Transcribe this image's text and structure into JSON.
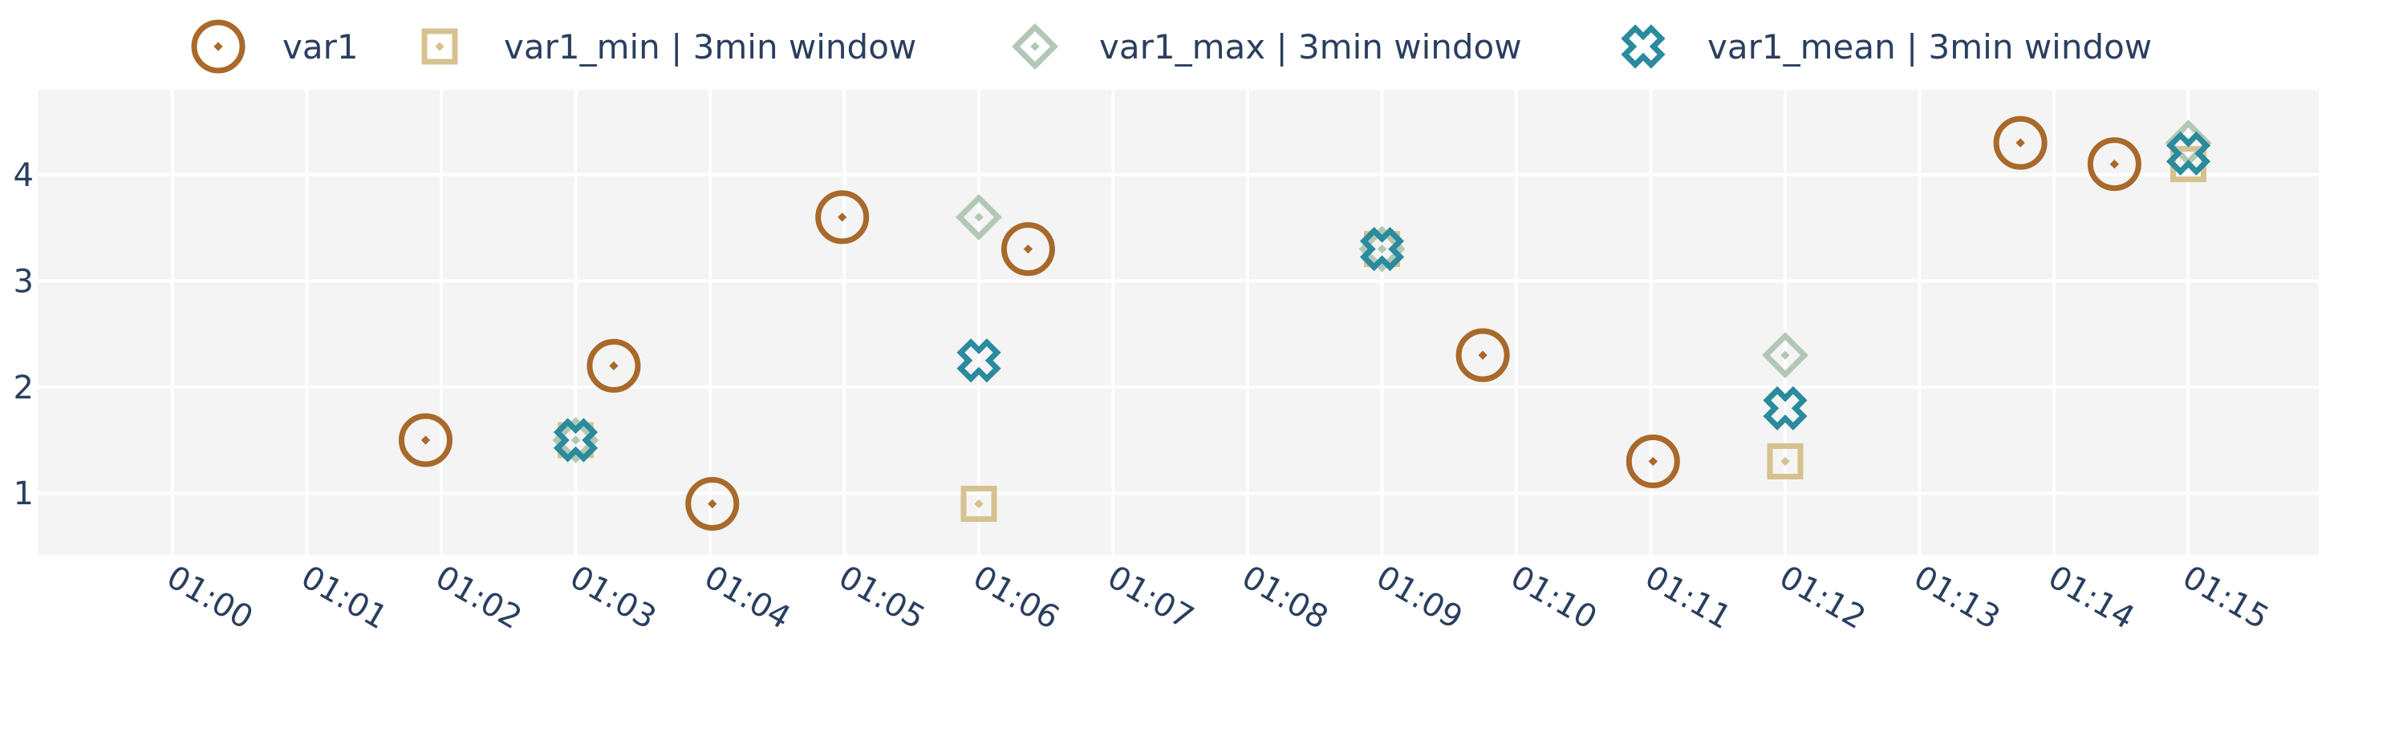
{
  "chart_data": {
    "type": "scatter",
    "title": "",
    "xlabel": "",
    "ylabel": "",
    "x_axis": {
      "type": "time",
      "ticks": [
        "01:00",
        "01:01",
        "01:02",
        "01:03",
        "01:04",
        "01:05",
        "01:06",
        "01:07",
        "01:08",
        "01:09",
        "01:10",
        "01:11",
        "01:12",
        "01:13",
        "01:14",
        "01:15"
      ]
    },
    "y_axis": {
      "ticks": [
        1,
        2,
        3,
        4
      ],
      "range": [
        0.42,
        4.8
      ]
    },
    "grid": true,
    "legend": {
      "position": "top",
      "orientation": "horizontal"
    },
    "colors": {
      "background": "#f4f4f4",
      "grid": "#ffffff",
      "text": "#2a3f5f"
    },
    "series": [
      {
        "name": "var1",
        "marker": "circle-dot",
        "color": "#a8692a",
        "points": [
          {
            "x": "01:01:53",
            "y": 1.5
          },
          {
            "x": "01:03:17",
            "y": 2.2
          },
          {
            "x": "01:04:01",
            "y": 0.9
          },
          {
            "x": "01:04:59",
            "y": 3.6
          },
          {
            "x": "01:06:22",
            "y": 3.3
          },
          {
            "x": "01:09:45",
            "y": 2.3
          },
          {
            "x": "01:11:01",
            "y": 1.3
          },
          {
            "x": "01:13:45",
            "y": 4.3
          },
          {
            "x": "01:14:27",
            "y": 4.1
          }
        ]
      },
      {
        "name": "var1_min | 3min window",
        "marker": "square-dot",
        "color": "#d6c28f",
        "points": [
          {
            "x": "01:03:00",
            "y": 1.5
          },
          {
            "x": "01:06:00",
            "y": 0.9
          },
          {
            "x": "01:09:00",
            "y": 3.3
          },
          {
            "x": "01:12:00",
            "y": 1.3
          },
          {
            "x": "01:15:00",
            "y": 4.1
          }
        ]
      },
      {
        "name": "var1_max | 3min window",
        "marker": "diamond-dot",
        "color": "#b3c7b5",
        "points": [
          {
            "x": "01:03:00",
            "y": 1.5
          },
          {
            "x": "01:06:00",
            "y": 3.6
          },
          {
            "x": "01:09:00",
            "y": 3.3
          },
          {
            "x": "01:12:00",
            "y": 2.3
          },
          {
            "x": "01:15:00",
            "y": 4.3
          }
        ]
      },
      {
        "name": "var1_mean | 3min window",
        "marker": "x-thin-open",
        "color": "#2a8a9e",
        "points": [
          {
            "x": "01:03:00",
            "y": 1.5
          },
          {
            "x": "01:06:00",
            "y": 2.25
          },
          {
            "x": "01:09:00",
            "y": 3.3
          },
          {
            "x": "01:12:00",
            "y": 1.8
          },
          {
            "x": "01:15:00",
            "y": 4.2
          }
        ]
      }
    ]
  }
}
